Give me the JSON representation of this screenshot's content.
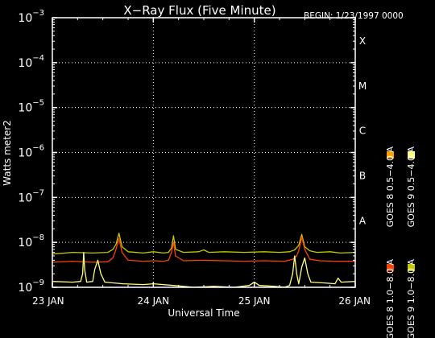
{
  "chart_data": {
    "type": "line",
    "title": "X−Ray Flux (Five Minute)",
    "begin_label": "BEGIN: 1/23/1997 0000",
    "ylabel": "Watts meter2",
    "xlabel": "Universal Time",
    "x_unit": "days since 23 Jan 1997 00:00",
    "xlim": [
      0,
      3
    ],
    "x_ticks": [
      {
        "value": 0,
        "label": "23 JAN"
      },
      {
        "value": 1,
        "label": "24 JAN"
      },
      {
        "value": 2,
        "label": "25 JAN"
      },
      {
        "value": 3,
        "label": "26 JAN"
      }
    ],
    "y_scale": "log",
    "ylim": [
      1e-09,
      0.001
    ],
    "y_ticks": [
      {
        "value": 1e-09,
        "base": "10",
        "exp": "−9"
      },
      {
        "value": 1e-08,
        "base": "10",
        "exp": "−8"
      },
      {
        "value": 1e-07,
        "base": "10",
        "exp": "−7"
      },
      {
        "value": 1e-06,
        "base": "10",
        "exp": "−6"
      },
      {
        "value": 1e-05,
        "base": "10",
        "exp": "−5"
      },
      {
        "value": 0.0001,
        "base": "10",
        "exp": "−4"
      },
      {
        "value": 0.001,
        "base": "10",
        "exp": "−3"
      }
    ],
    "flare_classes": [
      {
        "value": 3.16e-08,
        "label": "A"
      },
      {
        "value": 3.16e-07,
        "label": "B"
      },
      {
        "value": 3.16e-06,
        "label": "C"
      },
      {
        "value": 3.16e-05,
        "label": "M"
      },
      {
        "value": 0.000316,
        "label": "X"
      }
    ],
    "grid": {
      "horizontal_dotted": true,
      "vertical_dotted_at_days": true
    },
    "legend": {
      "placement": "right-vertical",
      "entries": [
        {
          "name": "GOES 8 1.0−8.0 A",
          "color": "#ff4000"
        },
        {
          "name": "GOES 8 0.5−4.0 A",
          "color": "#ffa000"
        },
        {
          "name": "GOES 9 1.0−8.0 A",
          "color": "#c8c800"
        },
        {
          "name": "GOES 9 0.5−4.0 A",
          "color": "#ffff80"
        }
      ]
    },
    "series": [
      {
        "name": "GOES 9 1.0−8.0 A",
        "color": "#c8c800",
        "points": [
          [
            0,
            5.5e-09
          ],
          [
            0.2,
            6e-09
          ],
          [
            0.4,
            5.8e-09
          ],
          [
            0.55,
            6e-09
          ],
          [
            0.6,
            7e-09
          ],
          [
            0.63,
            9e-09
          ],
          [
            0.66,
            1.6e-08
          ],
          [
            0.69,
            8e-09
          ],
          [
            0.75,
            6.2e-09
          ],
          [
            0.9,
            5.8e-09
          ],
          [
            1.0,
            6.2e-09
          ],
          [
            1.1,
            5.8e-09
          ],
          [
            1.15,
            6e-09
          ],
          [
            1.18,
            7.5e-09
          ],
          [
            1.2,
            1.4e-08
          ],
          [
            1.22,
            7e-09
          ],
          [
            1.3,
            6e-09
          ],
          [
            1.45,
            6.2e-09
          ],
          [
            1.5,
            6.8e-09
          ],
          [
            1.55,
            6e-09
          ],
          [
            1.7,
            6.2e-09
          ],
          [
            1.9,
            6e-09
          ],
          [
            2.1,
            6.2e-09
          ],
          [
            2.25,
            6e-09
          ],
          [
            2.35,
            6.2e-09
          ],
          [
            2.4,
            6.8e-09
          ],
          [
            2.44,
            8.5e-09
          ],
          [
            2.47,
            1.5e-08
          ],
          [
            2.5,
            8e-09
          ],
          [
            2.55,
            6.5e-09
          ],
          [
            2.62,
            6e-09
          ],
          [
            2.75,
            6.2e-09
          ],
          [
            2.85,
            5.8e-09
          ],
          [
            3.0,
            6e-09
          ]
        ]
      },
      {
        "name": "GOES 8 1.0−8.0 A",
        "color": "#ff4000",
        "points": [
          [
            0,
            3.6e-09
          ],
          [
            0.2,
            3.8e-09
          ],
          [
            0.4,
            3.6e-09
          ],
          [
            0.55,
            3.7e-09
          ],
          [
            0.6,
            4.5e-09
          ],
          [
            0.63,
            7e-09
          ],
          [
            0.66,
            1.2e-08
          ],
          [
            0.69,
            6e-09
          ],
          [
            0.75,
            4e-09
          ],
          [
            0.9,
            3.8e-09
          ],
          [
            1.0,
            3.9e-09
          ],
          [
            1.1,
            3.8e-09
          ],
          [
            1.15,
            4e-09
          ],
          [
            1.18,
            6e-09
          ],
          [
            1.2,
            1e-08
          ],
          [
            1.22,
            5e-09
          ],
          [
            1.3,
            3.9e-09
          ],
          [
            1.5,
            4e-09
          ],
          [
            1.7,
            3.9e-09
          ],
          [
            1.9,
            3.8e-09
          ],
          [
            2.1,
            3.9e-09
          ],
          [
            2.3,
            3.8e-09
          ],
          [
            2.38,
            4.2e-09
          ],
          [
            2.42,
            5e-09
          ],
          [
            2.44,
            6.5e-09
          ],
          [
            2.47,
            1.3e-08
          ],
          [
            2.5,
            7e-09
          ],
          [
            2.55,
            4.2e-09
          ],
          [
            2.65,
            3.9e-09
          ],
          [
            2.8,
            3.8e-09
          ],
          [
            3.0,
            3.8e-09
          ]
        ]
      },
      {
        "name": "GOES 9 0.5−4.0 A",
        "color": "#ffff80",
        "points": [
          [
            0,
            1.35e-09
          ],
          [
            0.2,
            1.3e-09
          ],
          [
            0.28,
            1.35e-09
          ],
          [
            0.3,
            2e-09
          ],
          [
            0.31,
            6e-09
          ],
          [
            0.32,
            2.5e-09
          ],
          [
            0.34,
            1.3e-09
          ],
          [
            0.4,
            1.35e-09
          ],
          [
            0.42,
            2.5e-09
          ],
          [
            0.45,
            4e-09
          ],
          [
            0.48,
            2e-09
          ],
          [
            0.52,
            1.3e-09
          ],
          [
            0.7,
            1.2e-09
          ],
          [
            0.9,
            1.15e-09
          ],
          [
            1.0,
            1.2e-09
          ],
          [
            1.2,
            1.1e-09
          ],
          [
            1.4,
            1e-09
          ],
          [
            1.6,
            1.05e-09
          ],
          [
            1.8,
            1e-09
          ],
          [
            1.95,
            1.1e-09
          ],
          [
            2.0,
            1.3e-09
          ],
          [
            2.05,
            1.1e-09
          ],
          [
            2.2,
            1.05e-09
          ],
          [
            2.3,
            1e-09
          ],
          [
            2.35,
            1.1e-09
          ],
          [
            2.38,
            2e-09
          ],
          [
            2.4,
            5e-09
          ],
          [
            2.42,
            2e-09
          ],
          [
            2.44,
            1.2e-09
          ],
          [
            2.47,
            2.8e-09
          ],
          [
            2.5,
            4.5e-09
          ],
          [
            2.53,
            2e-09
          ],
          [
            2.56,
            1.3e-09
          ],
          [
            2.7,
            1.25e-09
          ],
          [
            2.8,
            1.2e-09
          ],
          [
            2.83,
            1.6e-09
          ],
          [
            2.86,
            1.3e-09
          ],
          [
            3.0,
            1.35e-09
          ]
        ]
      }
    ]
  }
}
